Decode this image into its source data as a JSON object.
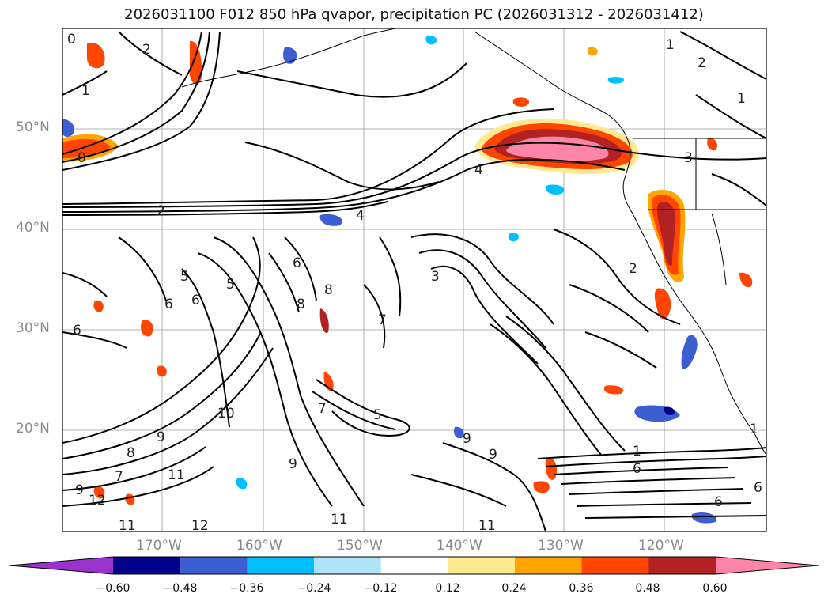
{
  "title": "2026031100 F012 850 hPa qvapor, precipitation PC (2026031312 - 2026031412)",
  "map": {
    "lat_labels": [
      "50°N",
      "40°N",
      "30°N",
      "20°N"
    ],
    "lon_labels": [
      "170°W",
      "160°W",
      "150°W",
      "140°W",
      "130°W",
      "120°W"
    ],
    "contour_labels": [
      "0",
      "2",
      "1",
      "1",
      "2",
      "1",
      "0",
      "2",
      "4",
      "4",
      "5",
      "7",
      "3",
      "3",
      "6",
      "5",
      "6",
      "5",
      "6",
      "6",
      "8",
      "8",
      "7",
      "2",
      "9",
      "10",
      "9",
      "8",
      "7",
      "9",
      "11",
      "12",
      "11",
      "12",
      "11",
      "9",
      "9",
      "1",
      "6",
      "11",
      "1",
      "6",
      "6"
    ]
  },
  "colorbar": {
    "ticks": [
      "−0.60",
      "−0.48",
      "−0.36",
      "−0.24",
      "−0.12",
      "0.12",
      "0.24",
      "0.36",
      "0.48",
      "0.60"
    ],
    "colors": {
      "under": "#9a33cc",
      "bins": [
        "#00008b",
        "#3b5fd0",
        "#00bfff",
        "#aee3fb",
        "#ffffff",
        "#fde98f",
        "#ffa500",
        "#ff4500",
        "#b22222"
      ],
      "over": "#ff85a8"
    }
  }
}
